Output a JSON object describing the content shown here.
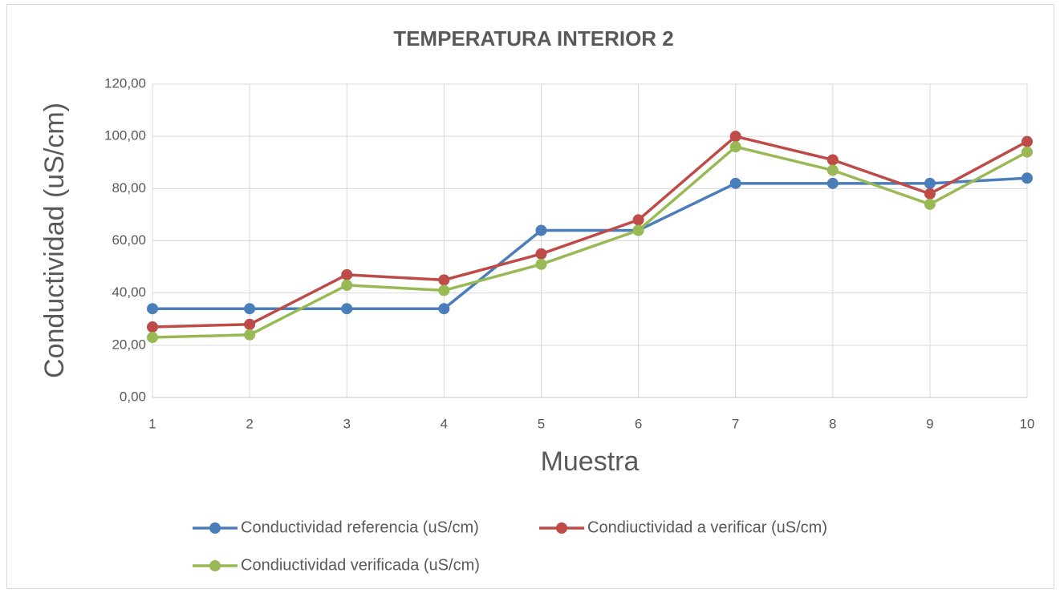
{
  "chart_data": {
    "type": "line",
    "title": "TEMPERATURA INTERIOR 2",
    "x_label": "Muestra",
    "y_label": "Conductividad (uS/cm)",
    "x": [
      1,
      2,
      3,
      4,
      5,
      6,
      7,
      8,
      9,
      10
    ],
    "xlim": [
      1,
      10
    ],
    "xticks": [
      1,
      2,
      3,
      4,
      5,
      6,
      7,
      8,
      9,
      10
    ],
    "ylim": [
      0,
      120
    ],
    "yticks": [
      {
        "value": 0,
        "label": "0,00"
      },
      {
        "value": 20,
        "label": "20,00"
      },
      {
        "value": 40,
        "label": "40,00"
      },
      {
        "value": 60,
        "label": "60,00"
      },
      {
        "value": 80,
        "label": "80,00"
      },
      {
        "value": 100,
        "label": "100,00"
      },
      {
        "value": 120,
        "label": "120,00"
      }
    ],
    "grid": true,
    "legend": "bottom",
    "series": [
      {
        "name": "Conductividad referencia (uS/cm)",
        "color": "#4a7ebb",
        "values": [
          34,
          34,
          34,
          34,
          64,
          64,
          82,
          82,
          82,
          84
        ]
      },
      {
        "name": "Condiuctividad a verificar (uS/cm)",
        "color": "#be4b48",
        "values": [
          27,
          28,
          47,
          45,
          55,
          68,
          100,
          91,
          78,
          98
        ]
      },
      {
        "name": "Condiuctividad verificada (uS/cm)",
        "color": "#98b954",
        "values": [
          23,
          24,
          43,
          41,
          51,
          64,
          96,
          87,
          74,
          94
        ]
      }
    ]
  }
}
